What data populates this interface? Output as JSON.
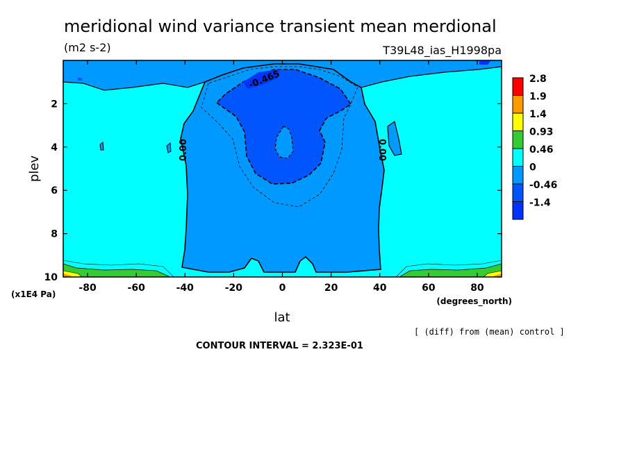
{
  "chart_data": {
    "type": "heatmap",
    "title": "meridional wind variance transient mean merdional",
    "units": "(m2 s-2)",
    "run_label": "T39L48_ias_H1998pa",
    "xlabel": "lat",
    "x_units": "(degrees_north)",
    "ylabel": "plev",
    "y_units": "(x1E4 Pa)",
    "xlim": [
      -90,
      90
    ],
    "ylim": [
      10,
      0
    ],
    "x_ticks": [
      "-80",
      "-60",
      "-40",
      "-20",
      "0",
      "20",
      "40",
      "60",
      "80"
    ],
    "x_tick_values": [
      -80,
      -60,
      -40,
      -20,
      0,
      20,
      40,
      60,
      80
    ],
    "y_ticks": [
      "2",
      "4",
      "6",
      "8",
      "10"
    ],
    "y_tick_values": [
      2,
      4,
      6,
      8,
      10
    ],
    "contour_labels": [
      {
        "text": "-0.465",
        "lat": -7,
        "plev": 0.8
      },
      {
        "text": "0.00",
        "lat": -39,
        "plev": 4.2
      },
      {
        "text": "0.00",
        "lat": 39,
        "plev": 4.2
      }
    ],
    "colorbar": {
      "levels": [
        "2.8",
        "1.9",
        "1.4",
        "0.93",
        "0.46",
        "0",
        "-0.46",
        "-1.4"
      ],
      "colors": [
        "#ff0000",
        "#ff9900",
        "#ffff00",
        "#33cc33",
        "#00ffff",
        "#0099ff",
        "#0055ff",
        "#0033ff"
      ]
    },
    "contour_interval": "CONTOUR INTERVAL = 2.323E-01",
    "note": "[ (diff) from (mean) control ]",
    "grid": false
  }
}
